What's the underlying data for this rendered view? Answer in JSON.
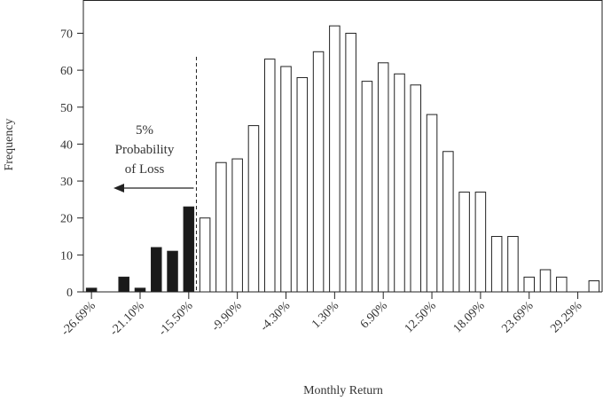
{
  "chart_data": {
    "type": "bar",
    "title": "",
    "xlabel": "Monthly Return",
    "ylabel": "Frequency",
    "ylim": [
      0,
      79
    ],
    "yticks": [
      0,
      10,
      20,
      30,
      40,
      50,
      60,
      70
    ],
    "xtick_labels": [
      "-26.69%",
      "-21.10%",
      "-15.50%",
      "-9.90%",
      "-4.30%",
      "1.30%",
      "6.90%",
      "12.50%",
      "18.09%",
      "23.69%",
      "29.29%"
    ],
    "xtick_bin_indices": [
      0,
      3,
      6,
      9,
      12,
      15,
      18,
      21,
      24,
      27,
      30
    ],
    "values": [
      1,
      0,
      4,
      1,
      12,
      11,
      23,
      20,
      35,
      36,
      45,
      63,
      61,
      58,
      65,
      72,
      70,
      57,
      62,
      59,
      56,
      48,
      38,
      27,
      27,
      15,
      15,
      4,
      6,
      4,
      0,
      3
    ],
    "filled_bins": 7,
    "threshold_bin_index": 7,
    "annotation": {
      "lines": [
        "5%",
        "Probability",
        "of Loss"
      ]
    },
    "colors": {
      "loss_fill": "#1a1a1a",
      "bar_fill": "#ffffff",
      "stroke": "#222222"
    },
    "grid": false,
    "legend": "none"
  }
}
